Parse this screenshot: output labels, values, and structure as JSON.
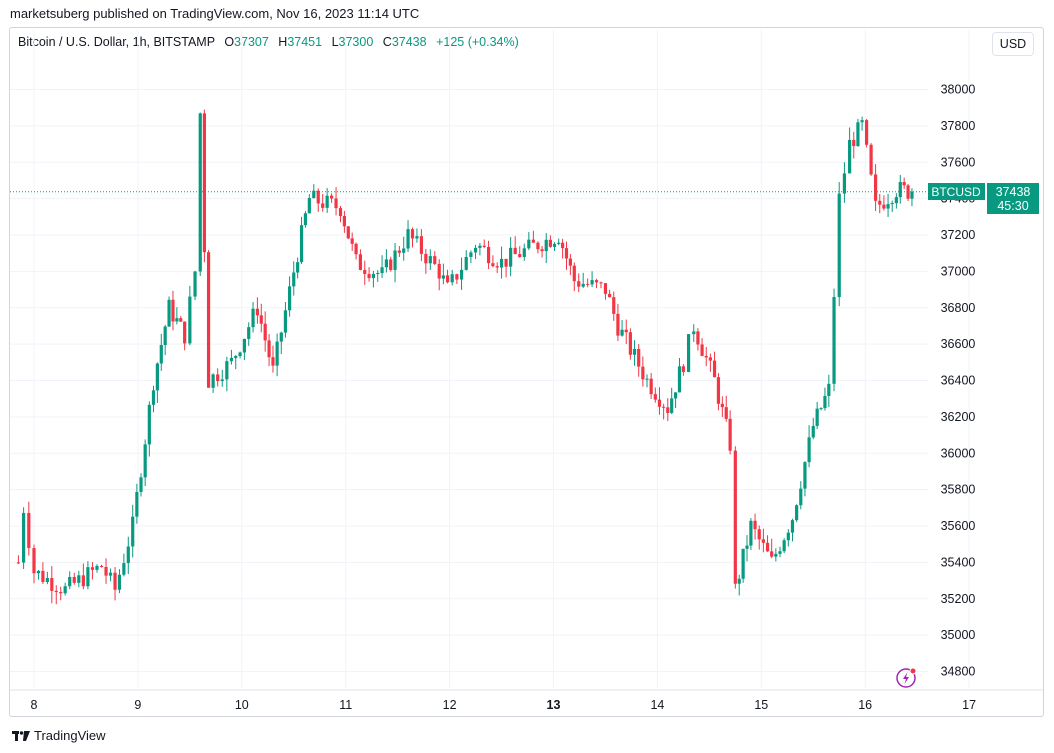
{
  "publisher": "marketsuberg published on TradingView.com, Nov 16, 2023 11:14 UTC",
  "legend": {
    "symbol": "Bitcoin / U.S. Dollar, 1h, BITSTAMP",
    "o_label": "O",
    "o_value": "37307",
    "h_label": "H",
    "h_value": "37451",
    "l_label": "L",
    "l_value": "37300",
    "c_label": "C",
    "c_value": "37438",
    "change": "+125 (+0.34%)"
  },
  "currency_button": "USD",
  "price_tag": {
    "ticker": "BTCUSD",
    "price": "37438",
    "countdown": "45:30"
  },
  "brand": "TradingView",
  "colors": {
    "up": "#089981",
    "down": "#f23645",
    "grid": "#f0f3fa",
    "price_line": "#089981",
    "spark": "#9c27b0"
  },
  "icons": {
    "alert": "lightning-alert-icon",
    "logo": "tradingview-logo-icon"
  },
  "chart_data": {
    "type": "candlestick",
    "title": "Bitcoin / U.S. Dollar, 1h, BITSTAMP",
    "ylim": [
      34700,
      38180
    ],
    "y_ticks": [
      "38000",
      "37800",
      "37600",
      "37400",
      "37200",
      "37000",
      "36800",
      "36600",
      "36400",
      "36200",
      "36000",
      "35800",
      "35600",
      "35400",
      "35200",
      "35000",
      "34800"
    ],
    "x_ticks": [
      "8",
      "9",
      "10",
      "11",
      "12",
      "13",
      "14",
      "15",
      "16",
      "17"
    ],
    "x_bold": "13",
    "x_tick_day": [
      8,
      9,
      10,
      11,
      12,
      13,
      14,
      15,
      16,
      17
    ],
    "last_close": 37438,
    "anchors": [
      {
        "day": 7.85,
        "price": 35400
      },
      {
        "day": 7.9,
        "price": 35700
      },
      {
        "day": 8.0,
        "price": 35350
      },
      {
        "day": 8.3,
        "price": 35250
      },
      {
        "day": 8.65,
        "price": 35380
      },
      {
        "day": 8.78,
        "price": 35250
      },
      {
        "day": 8.95,
        "price": 35600
      },
      {
        "day": 9.15,
        "price": 36400
      },
      {
        "day": 9.3,
        "price": 36800
      },
      {
        "day": 9.45,
        "price": 36650
      },
      {
        "day": 9.55,
        "price": 37000
      },
      {
        "day": 9.6,
        "price": 37870
      },
      {
        "day": 9.68,
        "price": 36400
      },
      {
        "day": 9.9,
        "price": 36500
      },
      {
        "day": 10.15,
        "price": 36800
      },
      {
        "day": 10.3,
        "price": 36450
      },
      {
        "day": 10.5,
        "price": 37000
      },
      {
        "day": 10.65,
        "price": 37400
      },
      {
        "day": 10.95,
        "price": 37350
      },
      {
        "day": 11.1,
        "price": 37050
      },
      {
        "day": 11.35,
        "price": 36980
      },
      {
        "day": 11.6,
        "price": 37200
      },
      {
        "day": 11.9,
        "price": 37000
      },
      {
        "day": 11.98,
        "price": 36900
      },
      {
        "day": 12.25,
        "price": 37150
      },
      {
        "day": 12.5,
        "price": 37050
      },
      {
        "day": 12.85,
        "price": 37150
      },
      {
        "day": 13.05,
        "price": 37200
      },
      {
        "day": 13.2,
        "price": 36950
      },
      {
        "day": 13.5,
        "price": 36900
      },
      {
        "day": 13.62,
        "price": 36700
      },
      {
        "day": 13.9,
        "price": 36400
      },
      {
        "day": 14.1,
        "price": 36250
      },
      {
        "day": 14.25,
        "price": 36500
      },
      {
        "day": 14.35,
        "price": 36700
      },
      {
        "day": 14.55,
        "price": 36400
      },
      {
        "day": 14.7,
        "price": 36050
      },
      {
        "day": 14.75,
        "price": 35250
      },
      {
        "day": 14.9,
        "price": 35600
      },
      {
        "day": 15.1,
        "price": 35400
      },
      {
        "day": 15.3,
        "price": 35650
      },
      {
        "day": 15.5,
        "price": 36150
      },
      {
        "day": 15.65,
        "price": 36350
      },
      {
        "day": 15.75,
        "price": 37400
      },
      {
        "day": 15.85,
        "price": 37700
      },
      {
        "day": 15.97,
        "price": 37800
      },
      {
        "day": 16.1,
        "price": 37350
      },
      {
        "day": 16.3,
        "price": 37450
      },
      {
        "day": 16.45,
        "price": 37438
      }
    ]
  }
}
